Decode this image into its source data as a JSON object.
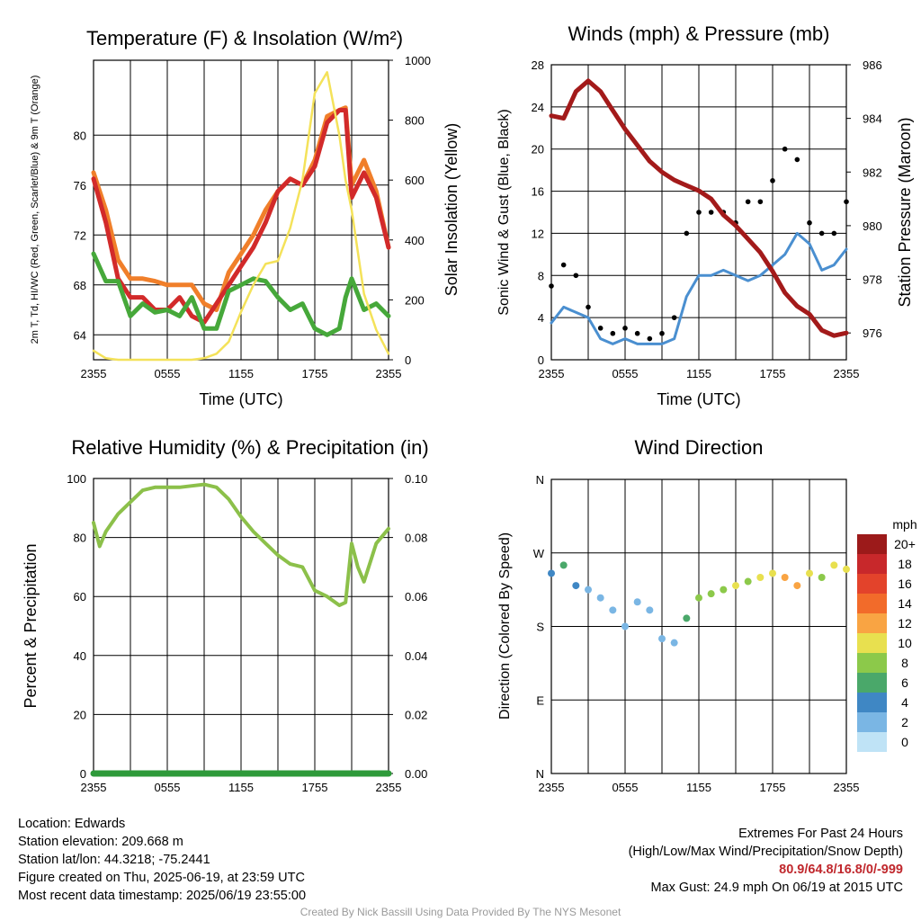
{
  "chart_data": [
    {
      "type": "line",
      "title": "Temperature (F) & Insolation (W/m²)",
      "xlabel": "Time (UTC)",
      "ylabel": "2m T, Td, HI/WC (Red, Green, Scarlet/Blue) & 9m T (Orange)",
      "y2label": "Solar Insolation (Yellow)",
      "x_ticks": [
        "2355",
        "0555",
        "1155",
        "1755",
        "2355"
      ],
      "ylim": [
        62,
        86
      ],
      "y_ticks": [
        64,
        68,
        72,
        76,
        80
      ],
      "y2lim": [
        0,
        1000
      ],
      "y2_ticks": [
        0,
        200,
        400,
        600,
        800,
        1000
      ],
      "x_hours": [
        0,
        1,
        2,
        3,
        4,
        5,
        6,
        7,
        8,
        9,
        10,
        11,
        12,
        13,
        14,
        15,
        16,
        17,
        18,
        19,
        20,
        20.5,
        21,
        22,
        23,
        24
      ],
      "series": [
        {
          "key": "temp9m",
          "axis": "left",
          "color": "#f07f2a",
          "values": [
            77,
            74,
            70,
            68.5,
            68.5,
            68.3,
            68,
            68,
            68,
            66.5,
            66,
            69,
            70.5,
            72,
            74,
            75.5,
            76.5,
            76,
            78,
            81.5,
            82,
            82.2,
            76,
            78,
            75.5,
            71
          ]
        },
        {
          "key": "temp2m",
          "axis": "left",
          "color": "#d22a2a",
          "values": [
            76.5,
            73,
            68.5,
            67,
            67,
            66,
            66,
            67,
            65.5,
            65,
            66.5,
            68,
            69.5,
            71,
            73,
            75.5,
            76.5,
            76,
            77.5,
            81,
            82,
            82,
            75,
            77,
            75,
            71
          ]
        },
        {
          "key": "dewpoint",
          "axis": "left",
          "color": "#46a83a",
          "values": [
            70.5,
            68.3,
            68.3,
            65.5,
            66.5,
            65.8,
            66,
            65.5,
            67,
            64.5,
            64.5,
            67.5,
            68,
            68.5,
            68.3,
            67,
            66,
            66.5,
            64.5,
            64,
            64.5,
            67,
            68.5,
            66,
            66.5,
            65.5
          ]
        },
        {
          "key": "insolation",
          "axis": "right",
          "color": "#f4e25a",
          "values": [
            30,
            5,
            0,
            0,
            0,
            0,
            0,
            0,
            0,
            5,
            20,
            60,
            160,
            250,
            320,
            330,
            440,
            600,
            890,
            960,
            750,
            600,
            500,
            220,
            100,
            20
          ]
        }
      ]
    },
    {
      "type": "line",
      "title": "Winds (mph) & Pressure (mb)",
      "xlabel": "Time (UTC)",
      "ylabel": "Sonic Wind & Gust (Blue, Black)",
      "y2label": "Station Pressure (Maroon)",
      "x_ticks": [
        "2355",
        "0555",
        "1155",
        "1755",
        "2355"
      ],
      "ylim": [
        0,
        28
      ],
      "y_ticks": [
        0,
        4,
        8,
        12,
        16,
        20,
        24,
        28
      ],
      "y2lim": [
        975,
        986
      ],
      "y2_ticks": [
        976,
        978,
        980,
        982,
        984,
        986
      ],
      "x_hours": [
        0,
        1,
        2,
        3,
        4,
        5,
        6,
        7,
        8,
        9,
        10,
        11,
        12,
        13,
        14,
        15,
        16,
        17,
        18,
        19,
        20,
        21,
        22,
        23,
        24
      ],
      "series": [
        {
          "key": "wind",
          "axis": "left",
          "color": "#4a8fd0",
          "values": [
            3.5,
            5,
            4.5,
            4,
            2,
            1.5,
            2,
            1.5,
            1.5,
            1.5,
            2,
            6,
            8,
            8,
            8.5,
            8,
            7.5,
            8,
            9,
            10,
            12,
            11,
            8.5,
            9,
            10.5
          ]
        },
        {
          "key": "gust",
          "axis": "left",
          "color": "#000000",
          "type": "scatter",
          "values": [
            7,
            9,
            8,
            5,
            3,
            2.5,
            3,
            2.5,
            2,
            2.5,
            4,
            12,
            14,
            14,
            14,
            13,
            15,
            15,
            17,
            20,
            19,
            13,
            12,
            12,
            15
          ]
        },
        {
          "key": "pressure",
          "axis": "right",
          "color": "#a31a1a",
          "values": [
            984.1,
            984.0,
            985.0,
            985.4,
            985.0,
            984.3,
            983.6,
            983.0,
            982.4,
            982.0,
            981.7,
            981.5,
            981.3,
            981.0,
            980.4,
            980.0,
            979.5,
            979.0,
            978.3,
            977.5,
            977.0,
            976.7,
            976.1,
            975.9,
            976.0
          ]
        }
      ]
    },
    {
      "type": "line",
      "title": "Relative Humidity (%) & Precipitation (in)",
      "ylabel": "Percent & Precipitation",
      "x_ticks": [
        "2355",
        "0555",
        "1155",
        "1755",
        "2355"
      ],
      "ylim": [
        0,
        100
      ],
      "y_ticks": [
        0,
        20,
        40,
        60,
        80,
        100
      ],
      "y2lim": [
        0,
        0.1
      ],
      "y2_ticks": [
        "0.00",
        "0.02",
        "0.04",
        "0.06",
        "0.08",
        "0.10"
      ],
      "x_hours": [
        0,
        0.5,
        1,
        2,
        3,
        4,
        5,
        6,
        7,
        8,
        9,
        10,
        11,
        12,
        13,
        14,
        15,
        16,
        17,
        18,
        19,
        20,
        20.5,
        21,
        21.5,
        22,
        23,
        24
      ],
      "series": [
        {
          "key": "rh",
          "axis": "left",
          "color": "#8cc04a",
          "values": [
            85,
            77,
            82,
            88,
            92,
            96,
            97,
            97,
            97,
            97.5,
            98,
            97,
            93,
            87,
            82,
            78,
            74,
            71,
            70,
            62,
            60,
            57,
            58,
            78,
            70,
            65,
            78,
            83
          ]
        },
        {
          "key": "precip",
          "axis": "right",
          "color": "#2e9a3a",
          "values": [
            0,
            0,
            0,
            0,
            0,
            0,
            0,
            0,
            0,
            0,
            0,
            0,
            0,
            0,
            0,
            0,
            0,
            0,
            0,
            0,
            0,
            0,
            0,
            0,
            0,
            0,
            0,
            0
          ]
        }
      ]
    },
    {
      "type": "scatter",
      "title": "Wind Direction",
      "ylabel": "Direction (Colored By Speed)",
      "x_ticks": [
        "2355",
        "0555",
        "1155",
        "1755",
        "2355"
      ],
      "y_ticks": [
        "N",
        "E",
        "S",
        "W",
        "N"
      ],
      "ylim": [
        0,
        360
      ],
      "colorbar_title": "mph",
      "colorbar_labels": [
        "20+",
        "18",
        "16",
        "14",
        "12",
        "10",
        "8",
        "6",
        "4",
        "2",
        "0"
      ],
      "colorbar_colors": [
        "#9c1a1a",
        "#c8282b",
        "#e3432b",
        "#f26b2a",
        "#f9a443",
        "#e8e04f",
        "#8cc94a",
        "#4aa86a",
        "#3f87c4",
        "#7ab6e4",
        "#bfe3f6"
      ],
      "x_hours": [
        0,
        1,
        2,
        3,
        4,
        5,
        6,
        7,
        8,
        9,
        10,
        11,
        12,
        13,
        14,
        15,
        16,
        17,
        18,
        19,
        20,
        21,
        22,
        23,
        24
      ],
      "direction_deg": [
        245,
        255,
        230,
        225,
        215,
        200,
        180,
        210,
        200,
        165,
        160,
        190,
        215,
        220,
        225,
        230,
        235,
        240,
        245,
        240,
        230,
        245,
        240,
        255,
        250
      ],
      "speed_mph": [
        4,
        5,
        3,
        2,
        2,
        1,
        1,
        1,
        1,
        1,
        2,
        6,
        8,
        8,
        8,
        9,
        8,
        9,
        10,
        11,
        12,
        10,
        8,
        9,
        10
      ]
    }
  ],
  "footer": {
    "location": "Location: Edwards",
    "elevation": "Station elevation: 209.668 m",
    "latlon": "Station lat/lon: 44.3218; -75.2441",
    "created": "Figure created on Thu, 2025-06-19, at 23:59 UTC",
    "recent": "Most recent data timestamp: 2025/06/19 23:55:00",
    "extremes_title": "Extremes For Past 24 Hours",
    "extremes_legend": "(High/Low/Max Wind/Precipitation/Snow Depth)",
    "extremes_values": "80.9/64.8/16.8/0/-999",
    "max_gust": "Max Gust: 24.9 mph On 06/19 at 2015 UTC",
    "credit": "Created By Nick Bassill Using Data Provided By The NYS Mesonet"
  }
}
